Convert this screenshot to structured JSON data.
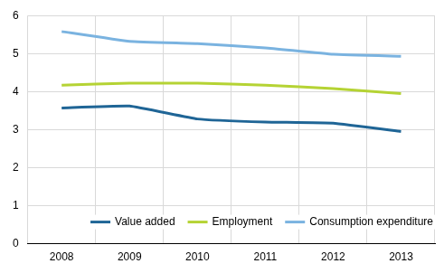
{
  "chart_data": {
    "type": "line",
    "categories": [
      "2008",
      "2009",
      "2010",
      "2011",
      "2012",
      "2013"
    ],
    "series": [
      {
        "name": "Value added",
        "color": "#1f6596",
        "values": [
          3.57,
          3.62,
          3.28,
          3.2,
          3.17,
          2.95
        ]
      },
      {
        "name": "Employment",
        "color": "#b5d334",
        "values": [
          4.17,
          4.22,
          4.22,
          4.17,
          4.08,
          3.95
        ]
      },
      {
        "name": "Consumption expenditure",
        "color": "#7ab3e0",
        "values": [
          5.58,
          5.32,
          5.26,
          5.15,
          4.98,
          4.93
        ]
      }
    ],
    "ylim": [
      0,
      6
    ],
    "yticks": [
      0,
      1,
      2,
      3,
      4,
      5,
      6
    ],
    "grid": true,
    "legend": "lower right"
  }
}
